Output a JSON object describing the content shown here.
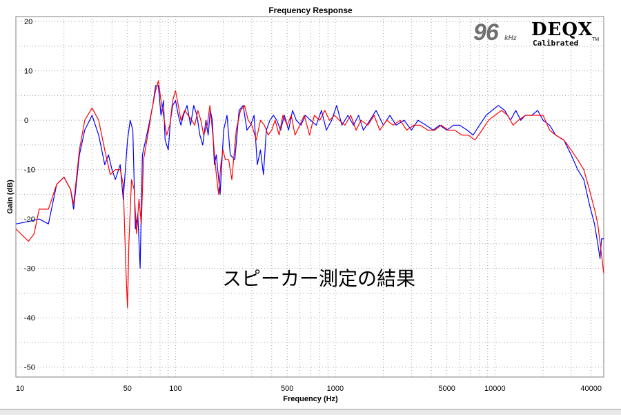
{
  "logo": {
    "rate": "96",
    "rate_unit": "kHz",
    "brand": "DEQX",
    "tagline": "Calibrated",
    "trademark": "TM"
  },
  "annotation": "スピーカー測定の結果",
  "colors": {
    "series_blue": "#0000ff",
    "series_red": "#ff0000",
    "grid": "#a0a0a0",
    "plot_background": "#ffffff"
  },
  "chart_data": {
    "type": "line",
    "title": "Frequency Response",
    "xlabel": "Frequency (Hz)",
    "ylabel": "Gain (dB)",
    "xscale": "log",
    "xlim": [
      10,
      48000
    ],
    "ylim": [
      -52,
      21
    ],
    "grid": true,
    "legend": "none",
    "x_tick_labels": [
      10,
      50,
      100,
      500,
      1000,
      5000,
      10000,
      40000
    ],
    "y_tick_labels": [
      20,
      10,
      0,
      -10,
      -20,
      -30,
      -40,
      -50
    ],
    "series": [
      {
        "color": "#0000ff",
        "points": [
          [
            10,
            -21
          ],
          [
            12,
            -20.5
          ],
          [
            14,
            -20
          ],
          [
            16,
            -21
          ],
          [
            18,
            -13
          ],
          [
            20,
            -11.5
          ],
          [
            22,
            -14
          ],
          [
            23,
            -18
          ],
          [
            25,
            -7
          ],
          [
            27,
            -2
          ],
          [
            30,
            1
          ],
          [
            33,
            -3
          ],
          [
            36,
            -9
          ],
          [
            38,
            -7
          ],
          [
            40,
            -10
          ],
          [
            42,
            -12
          ],
          [
            45,
            -9
          ],
          [
            47,
            -16
          ],
          [
            50,
            -4
          ],
          [
            52,
            0
          ],
          [
            54,
            -2
          ],
          [
            56,
            -22
          ],
          [
            58,
            -19
          ],
          [
            60,
            -30
          ],
          [
            62,
            -7
          ],
          [
            65,
            -4
          ],
          [
            68,
            -1
          ],
          [
            72,
            3
          ],
          [
            75,
            7
          ],
          [
            78,
            7
          ],
          [
            81,
            1
          ],
          [
            84,
            4
          ],
          [
            86,
            -4
          ],
          [
            90,
            -6
          ],
          [
            93,
            0
          ],
          [
            96,
            3
          ],
          [
            100,
            4
          ],
          [
            104,
            1
          ],
          [
            108,
            -1
          ],
          [
            112,
            1
          ],
          [
            118,
            3
          ],
          [
            124,
            -1
          ],
          [
            130,
            3
          ],
          [
            136,
            1
          ],
          [
            142,
            -3
          ],
          [
            148,
            -5
          ],
          [
            155,
            0
          ],
          [
            160,
            -3
          ],
          [
            165,
            2
          ],
          [
            170,
            0
          ],
          [
            175,
            -9
          ],
          [
            180,
            -7
          ],
          [
            190,
            -15
          ],
          [
            200,
            -2
          ],
          [
            210,
            1
          ],
          [
            220,
            -7
          ],
          [
            235,
            -8
          ],
          [
            250,
            2
          ],
          [
            265,
            3
          ],
          [
            280,
            -2
          ],
          [
            295,
            -1
          ],
          [
            310,
            1
          ],
          [
            325,
            -9
          ],
          [
            340,
            -6
          ],
          [
            355,
            -11
          ],
          [
            370,
            -2
          ],
          [
            390,
            0
          ],
          [
            410,
            1
          ],
          [
            430,
            0
          ],
          [
            455,
            -2
          ],
          [
            480,
            1
          ],
          [
            510,
            -2
          ],
          [
            540,
            2
          ],
          [
            570,
            0
          ],
          [
            610,
            -1
          ],
          [
            650,
            1
          ],
          [
            700,
            0
          ],
          [
            760,
            -1
          ],
          [
            820,
            2
          ],
          [
            880,
            -2
          ],
          [
            950,
            0
          ],
          [
            1020,
            3
          ],
          [
            1100,
            -1
          ],
          [
            1200,
            1
          ],
          [
            1300,
            -1
          ],
          [
            1400,
            1
          ],
          [
            1500,
            -2
          ],
          [
            1650,
            0
          ],
          [
            1800,
            2
          ],
          [
            2000,
            -1
          ],
          [
            2200,
            1
          ],
          [
            2400,
            -1
          ],
          [
            2700,
            0
          ],
          [
            3000,
            -2
          ],
          [
            3300,
            0
          ],
          [
            3700,
            -1
          ],
          [
            4100,
            -2
          ],
          [
            4500,
            -1
          ],
          [
            5000,
            -2
          ],
          [
            5500,
            -1
          ],
          [
            6000,
            -1
          ],
          [
            6700,
            -2
          ],
          [
            7300,
            -3
          ],
          [
            8000,
            -1
          ],
          [
            8800,
            1
          ],
          [
            9600,
            2
          ],
          [
            10500,
            3
          ],
          [
            11500,
            2
          ],
          [
            12500,
            0
          ],
          [
            13500,
            2
          ],
          [
            14500,
            0
          ],
          [
            15500,
            1
          ],
          [
            17000,
            1
          ],
          [
            18500,
            2
          ],
          [
            20000,
            0
          ],
          [
            22000,
            -1
          ],
          [
            24000,
            -3
          ],
          [
            27000,
            -4
          ],
          [
            30000,
            -7
          ],
          [
            33000,
            -10
          ],
          [
            36000,
            -12
          ],
          [
            39000,
            -17
          ],
          [
            42000,
            -21
          ],
          [
            44000,
            -25
          ],
          [
            45500,
            -28
          ],
          [
            46500,
            -24
          ],
          [
            48000,
            -24
          ]
        ]
      },
      {
        "color": "#ff0000",
        "points": [
          [
            10,
            -22
          ],
          [
            12,
            -24.5
          ],
          [
            13,
            -23
          ],
          [
            14,
            -18
          ],
          [
            16,
            -18
          ],
          [
            18,
            -13
          ],
          [
            20,
            -11.5
          ],
          [
            22,
            -14
          ],
          [
            23,
            -17
          ],
          [
            25,
            -6
          ],
          [
            27,
            0
          ],
          [
            30,
            2.5
          ],
          [
            33,
            0
          ],
          [
            36,
            -6
          ],
          [
            39,
            -11
          ],
          [
            42,
            -10
          ],
          [
            45,
            -10
          ],
          [
            47,
            -13
          ],
          [
            49,
            -31
          ],
          [
            50,
            -38
          ],
          [
            51,
            -25
          ],
          [
            53,
            -12
          ],
          [
            55,
            -14
          ],
          [
            57,
            -23
          ],
          [
            59,
            -16
          ],
          [
            61,
            -21
          ],
          [
            63,
            -8
          ],
          [
            67,
            -3
          ],
          [
            71,
            2
          ],
          [
            75,
            6
          ],
          [
            78,
            8
          ],
          [
            81,
            4
          ],
          [
            84,
            1
          ],
          [
            88,
            -3
          ],
          [
            92,
            -1
          ],
          [
            96,
            4
          ],
          [
            100,
            6
          ],
          [
            104,
            3
          ],
          [
            108,
            0
          ],
          [
            114,
            2
          ],
          [
            120,
            1
          ],
          [
            126,
            0
          ],
          [
            132,
            -1
          ],
          [
            138,
            2
          ],
          [
            144,
            0
          ],
          [
            150,
            -3
          ],
          [
            158,
            -1
          ],
          [
            164,
            3
          ],
          [
            170,
            -2
          ],
          [
            180,
            -11
          ],
          [
            186,
            -15
          ],
          [
            192,
            -9
          ],
          [
            198,
            -6
          ],
          [
            205,
            -8
          ],
          [
            215,
            -8
          ],
          [
            225,
            -12
          ],
          [
            240,
            -2
          ],
          [
            255,
            2
          ],
          [
            270,
            3
          ],
          [
            285,
            0
          ],
          [
            300,
            -1
          ],
          [
            320,
            -4
          ],
          [
            340,
            0
          ],
          [
            360,
            -1
          ],
          [
            380,
            -3
          ],
          [
            400,
            -2
          ],
          [
            420,
            0
          ],
          [
            445,
            -3
          ],
          [
            470,
            1
          ],
          [
            500,
            -1
          ],
          [
            530,
            1
          ],
          [
            560,
            -3
          ],
          [
            600,
            -1
          ],
          [
            640,
            1
          ],
          [
            690,
            -3
          ],
          [
            740,
            1
          ],
          [
            800,
            0
          ],
          [
            860,
            2
          ],
          [
            920,
            0
          ],
          [
            990,
            1
          ],
          [
            1060,
            0
          ],
          [
            1150,
            -1
          ],
          [
            1250,
            1
          ],
          [
            1350,
            -2
          ],
          [
            1450,
            0
          ],
          [
            1600,
            -1
          ],
          [
            1750,
            1
          ],
          [
            1900,
            -2
          ],
          [
            2100,
            0
          ],
          [
            2300,
            -1
          ],
          [
            2550,
            0
          ],
          [
            2800,
            -2
          ],
          [
            3100,
            -1
          ],
          [
            3400,
            -1
          ],
          [
            3800,
            -2
          ],
          [
            4200,
            -2
          ],
          [
            4600,
            -1
          ],
          [
            5100,
            -2
          ],
          [
            5600,
            -2
          ],
          [
            6200,
            -3
          ],
          [
            6800,
            -3
          ],
          [
            7500,
            -4
          ],
          [
            8300,
            -2
          ],
          [
            9100,
            0
          ],
          [
            10000,
            1
          ],
          [
            11000,
            2
          ],
          [
            12000,
            1
          ],
          [
            13000,
            -1
          ],
          [
            14000,
            0
          ],
          [
            15500,
            1
          ],
          [
            17000,
            1
          ],
          [
            18500,
            1
          ],
          [
            20000,
            1
          ],
          [
            22000,
            -2
          ],
          [
            24000,
            -3
          ],
          [
            27000,
            -4
          ],
          [
            30000,
            -6
          ],
          [
            33000,
            -8
          ],
          [
            36000,
            -10
          ],
          [
            39000,
            -14
          ],
          [
            42000,
            -18
          ],
          [
            44000,
            -21
          ],
          [
            46000,
            -26
          ],
          [
            48000,
            -31
          ]
        ]
      }
    ]
  }
}
